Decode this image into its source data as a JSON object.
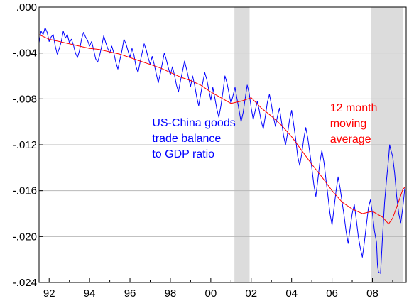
{
  "chart_data": {
    "type": "line",
    "x_unit": "year",
    "xlim": [
      1991.5,
      2009.67
    ],
    "ylim": [
      -0.024,
      0.0
    ],
    "x_tick_labels": [
      {
        "value": 1992,
        "label": "92"
      },
      {
        "value": 1994,
        "label": "94"
      },
      {
        "value": 1996,
        "label": "96"
      },
      {
        "value": 1998,
        "label": "98"
      },
      {
        "value": 2000,
        "label": "00"
      },
      {
        "value": 2002,
        "label": "02"
      },
      {
        "value": 2004,
        "label": "04"
      },
      {
        "value": 2006,
        "label": "06"
      },
      {
        "value": 2008,
        "label": "08"
      }
    ],
    "y_tick_labels": [
      {
        "value": 0.0,
        "label": ".000"
      },
      {
        "value": -0.004,
        "label": "-.004"
      },
      {
        "value": -0.008,
        "label": "-.008"
      },
      {
        "value": -0.012,
        "label": "-.012"
      },
      {
        "value": -0.016,
        "label": "-.016"
      },
      {
        "value": -0.02,
        "label": "-.020"
      },
      {
        "value": -0.024,
        "label": "-.024"
      }
    ],
    "grid": {
      "horizontal": true,
      "vertical": false
    },
    "shaded_periods": [
      {
        "start": 2001.17,
        "end": 2001.92
      },
      {
        "start": 2007.92,
        "end": 2009.5
      }
    ],
    "annotations": [
      {
        "lines": [
          "US-China goods",
          "trade balance",
          "to GDP ratio"
        ],
        "color": "#0000ff",
        "x": 1997.1,
        "y": -0.0104
      },
      {
        "lines": [
          "12 month",
          "moving",
          "average"
        ],
        "color": "#ff0000",
        "x": 2005.9,
        "y": -0.0091
      }
    ],
    "series": [
      {
        "color": "#0000ff",
        "kind": "monthly",
        "points": [
          [
            1991.5,
            -0.0031
          ],
          [
            1991.6,
            -0.0021
          ],
          [
            1991.7,
            -0.0024
          ],
          [
            1991.8,
            -0.0018
          ],
          [
            1991.9,
            -0.0022
          ],
          [
            1992.0,
            -0.003
          ],
          [
            1992.1,
            -0.0026
          ],
          [
            1992.2,
            -0.0024
          ],
          [
            1992.3,
            -0.0034
          ],
          [
            1992.4,
            -0.0041
          ],
          [
            1992.5,
            -0.0036
          ],
          [
            1992.6,
            -0.003
          ],
          [
            1992.7,
            -0.0021
          ],
          [
            1992.8,
            -0.0027
          ],
          [
            1992.9,
            -0.0024
          ],
          [
            1993.0,
            -0.0031
          ],
          [
            1993.1,
            -0.0028
          ],
          [
            1993.2,
            -0.0033
          ],
          [
            1993.3,
            -0.004
          ],
          [
            1993.4,
            -0.0044
          ],
          [
            1993.5,
            -0.0038
          ],
          [
            1993.6,
            -0.0028
          ],
          [
            1993.7,
            -0.0022
          ],
          [
            1993.8,
            -0.0026
          ],
          [
            1993.9,
            -0.0029
          ],
          [
            1994.0,
            -0.0034
          ],
          [
            1994.1,
            -0.003
          ],
          [
            1994.2,
            -0.0037
          ],
          [
            1994.3,
            -0.0045
          ],
          [
            1994.4,
            -0.0048
          ],
          [
            1994.5,
            -0.0042
          ],
          [
            1994.6,
            -0.0034
          ],
          [
            1994.7,
            -0.0025
          ],
          [
            1994.8,
            -0.0031
          ],
          [
            1994.9,
            -0.0036
          ],
          [
            1995.0,
            -0.004
          ],
          [
            1995.1,
            -0.0034
          ],
          [
            1995.2,
            -0.004
          ],
          [
            1995.3,
            -0.0048
          ],
          [
            1995.4,
            -0.0054
          ],
          [
            1995.5,
            -0.0046
          ],
          [
            1995.6,
            -0.0038
          ],
          [
            1995.7,
            -0.0028
          ],
          [
            1995.8,
            -0.0032
          ],
          [
            1995.9,
            -0.0038
          ],
          [
            1996.0,
            -0.0044
          ],
          [
            1996.1,
            -0.0036
          ],
          [
            1996.2,
            -0.0042
          ],
          [
            1996.3,
            -0.0052
          ],
          [
            1996.4,
            -0.0057
          ],
          [
            1996.5,
            -0.0048
          ],
          [
            1996.6,
            -0.004
          ],
          [
            1996.7,
            -0.0032
          ],
          [
            1996.8,
            -0.0037
          ],
          [
            1996.9,
            -0.0044
          ],
          [
            1997.0,
            -0.005
          ],
          [
            1997.1,
            -0.0043
          ],
          [
            1997.2,
            -0.005
          ],
          [
            1997.3,
            -0.0058
          ],
          [
            1997.4,
            -0.0066
          ],
          [
            1997.5,
            -0.0058
          ],
          [
            1997.6,
            -0.0049
          ],
          [
            1997.7,
            -0.004
          ],
          [
            1997.8,
            -0.0046
          ],
          [
            1997.9,
            -0.0053
          ],
          [
            1998.0,
            -0.0059
          ],
          [
            1998.1,
            -0.0052
          ],
          [
            1998.2,
            -0.0059
          ],
          [
            1998.3,
            -0.0068
          ],
          [
            1998.4,
            -0.0074
          ],
          [
            1998.5,
            -0.0064
          ],
          [
            1998.6,
            -0.0056
          ],
          [
            1998.7,
            -0.0047
          ],
          [
            1998.8,
            -0.0054
          ],
          [
            1998.9,
            -0.0062
          ],
          [
            1999.0,
            -0.0069
          ],
          [
            1999.1,
            -0.006
          ],
          [
            1999.2,
            -0.0068
          ],
          [
            1999.3,
            -0.0078
          ],
          [
            1999.4,
            -0.0086
          ],
          [
            1999.5,
            -0.0076
          ],
          [
            1999.6,
            -0.0066
          ],
          [
            1999.7,
            -0.0057
          ],
          [
            1999.8,
            -0.0063
          ],
          [
            1999.9,
            -0.0072
          ],
          [
            2000.0,
            -0.0081
          ],
          [
            2000.1,
            -0.007
          ],
          [
            2000.2,
            -0.0079
          ],
          [
            2000.3,
            -0.0089
          ],
          [
            2000.4,
            -0.0096
          ],
          [
            2000.5,
            -0.0086
          ],
          [
            2000.6,
            -0.0074
          ],
          [
            2000.7,
            -0.006
          ],
          [
            2000.8,
            -0.0066
          ],
          [
            2000.9,
            -0.0075
          ],
          [
            2001.0,
            -0.0084
          ],
          [
            2001.1,
            -0.0077
          ],
          [
            2001.2,
            -0.007
          ],
          [
            2001.3,
            -0.008
          ],
          [
            2001.4,
            -0.009
          ],
          [
            2001.5,
            -0.01
          ],
          [
            2001.6,
            -0.0092
          ],
          [
            2001.7,
            -0.008
          ],
          [
            2001.8,
            -0.0068
          ],
          [
            2001.9,
            -0.0075
          ],
          [
            2002.0,
            -0.0088
          ],
          [
            2002.1,
            -0.0098
          ],
          [
            2002.2,
            -0.009
          ],
          [
            2002.3,
            -0.0082
          ],
          [
            2002.4,
            -0.009
          ],
          [
            2002.5,
            -0.01
          ],
          [
            2002.6,
            -0.0106
          ],
          [
            2002.7,
            -0.0095
          ],
          [
            2002.8,
            -0.0083
          ],
          [
            2002.9,
            -0.0076
          ],
          [
            2003.0,
            -0.0085
          ],
          [
            2003.1,
            -0.0096
          ],
          [
            2003.2,
            -0.0104
          ],
          [
            2003.3,
            -0.0095
          ],
          [
            2003.4,
            -0.0088
          ],
          [
            2003.5,
            -0.01
          ],
          [
            2003.6,
            -0.0112
          ],
          [
            2003.7,
            -0.012
          ],
          [
            2003.8,
            -0.011
          ],
          [
            2003.9,
            -0.0098
          ],
          [
            2004.0,
            -0.009
          ],
          [
            2004.1,
            -0.0102
          ],
          [
            2004.2,
            -0.0115
          ],
          [
            2004.3,
            -0.013
          ],
          [
            2004.4,
            -0.0138
          ],
          [
            2004.5,
            -0.0128
          ],
          [
            2004.6,
            -0.0115
          ],
          [
            2004.7,
            -0.0105
          ],
          [
            2004.8,
            -0.0114
          ],
          [
            2004.9,
            -0.0127
          ],
          [
            2005.0,
            -0.014
          ],
          [
            2005.1,
            -0.0155
          ],
          [
            2005.2,
            -0.0165
          ],
          [
            2005.3,
            -0.015
          ],
          [
            2005.4,
            -0.0135
          ],
          [
            2005.5,
            -0.0125
          ],
          [
            2005.6,
            -0.0135
          ],
          [
            2005.7,
            -0.015
          ],
          [
            2005.8,
            -0.0165
          ],
          [
            2005.9,
            -0.018
          ],
          [
            2006.0,
            -0.019
          ],
          [
            2006.1,
            -0.0175
          ],
          [
            2006.2,
            -0.016
          ],
          [
            2006.3,
            -0.0148
          ],
          [
            2006.4,
            -0.0158
          ],
          [
            2006.5,
            -0.017
          ],
          [
            2006.6,
            -0.0182
          ],
          [
            2006.7,
            -0.0196
          ],
          [
            2006.8,
            -0.0206
          ],
          [
            2006.9,
            -0.0192
          ],
          [
            2007.0,
            -0.018
          ],
          [
            2007.1,
            -0.0172
          ],
          [
            2007.2,
            -0.0185
          ],
          [
            2007.3,
            -0.02
          ],
          [
            2007.4,
            -0.021
          ],
          [
            2007.5,
            -0.0218
          ],
          [
            2007.6,
            -0.0205
          ],
          [
            2007.7,
            -0.019
          ],
          [
            2007.8,
            -0.0175
          ],
          [
            2007.9,
            -0.0168
          ],
          [
            2008.0,
            -0.018
          ],
          [
            2008.1,
            -0.0195
          ],
          [
            2008.2,
            -0.0205
          ],
          [
            2008.25,
            -0.0225
          ],
          [
            2008.3,
            -0.0231
          ],
          [
            2008.4,
            -0.0232
          ],
          [
            2008.5,
            -0.02
          ],
          [
            2008.6,
            -0.017
          ],
          [
            2008.7,
            -0.015
          ],
          [
            2008.8,
            -0.0132
          ],
          [
            2008.85,
            -0.012
          ],
          [
            2008.9,
            -0.0124
          ],
          [
            2009.0,
            -0.013
          ],
          [
            2009.1,
            -0.0145
          ],
          [
            2009.2,
            -0.0165
          ],
          [
            2009.3,
            -0.018
          ],
          [
            2009.4,
            -0.0188
          ],
          [
            2009.5,
            -0.0175
          ],
          [
            2009.6,
            -0.0158
          ]
        ]
      },
      {
        "color": "#ff0000",
        "kind": "12-month moving average",
        "points": [
          [
            1991.5,
            -0.0024
          ],
          [
            1992.0,
            -0.0028
          ],
          [
            1992.5,
            -0.003
          ],
          [
            1993.0,
            -0.0032
          ],
          [
            1993.5,
            -0.0034
          ],
          [
            1994.0,
            -0.0036
          ],
          [
            1994.5,
            -0.0037
          ],
          [
            1995.0,
            -0.0039
          ],
          [
            1995.5,
            -0.0041
          ],
          [
            1996.0,
            -0.0044
          ],
          [
            1996.5,
            -0.0047
          ],
          [
            1997.0,
            -0.005
          ],
          [
            1997.5,
            -0.0053
          ],
          [
            1998.0,
            -0.0057
          ],
          [
            1998.5,
            -0.0061
          ],
          [
            1999.0,
            -0.0064
          ],
          [
            1999.5,
            -0.0068
          ],
          [
            2000.0,
            -0.0074
          ],
          [
            2000.5,
            -0.0079
          ],
          [
            2001.0,
            -0.0084
          ],
          [
            2001.5,
            -0.0082
          ],
          [
            2002.0,
            -0.0079
          ],
          [
            2002.5,
            -0.0088
          ],
          [
            2003.0,
            -0.0095
          ],
          [
            2003.5,
            -0.0103
          ],
          [
            2004.0,
            -0.0113
          ],
          [
            2004.5,
            -0.0125
          ],
          [
            2005.0,
            -0.0137
          ],
          [
            2005.5,
            -0.0148
          ],
          [
            2006.0,
            -0.016
          ],
          [
            2006.5,
            -0.017
          ],
          [
            2007.0,
            -0.0176
          ],
          [
            2007.5,
            -0.018
          ],
          [
            2008.0,
            -0.0178
          ],
          [
            2008.5,
            -0.0183
          ],
          [
            2008.8,
            -0.0189
          ],
          [
            2009.0,
            -0.0184
          ],
          [
            2009.25,
            -0.0172
          ],
          [
            2009.5,
            -0.0159
          ],
          [
            2009.6,
            -0.0157
          ]
        ]
      }
    ]
  }
}
